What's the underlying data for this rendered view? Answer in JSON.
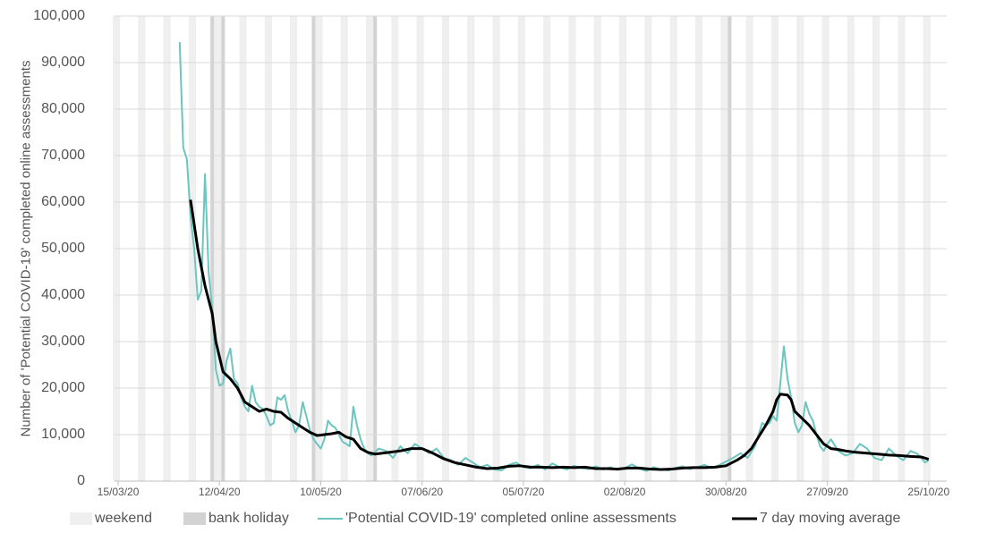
{
  "chart_data": {
    "type": "line",
    "y_label": "Number of 'Potential COVID-19' completed online assessments",
    "weekend_label": "weekend",
    "bank_holiday_label": "bank holiday",
    "weekend_color": "#efefef",
    "bank_holiday_color": "#d3d3d3",
    "bank_holidays": [
      "10/04/20",
      "13/04/20",
      "08/05/20",
      "25/05/20",
      "31/08/20"
    ],
    "grid": true,
    "legend": "bottom",
    "xlim": [
      "14/03/20",
      "30/10/20"
    ],
    "xticks": [
      "15/03/20",
      "12/04/20",
      "10/05/20",
      "07/06/20",
      "05/07/20",
      "02/08/20",
      "30/08/20",
      "27/09/20",
      "25/10/20"
    ],
    "ylim": [
      0,
      100000
    ],
    "yticks": [
      {
        "value": 0,
        "label": "0"
      },
      {
        "value": 10000,
        "label": "10,000"
      },
      {
        "value": 20000,
        "label": "20,000"
      },
      {
        "value": 30000,
        "label": "30,000"
      },
      {
        "value": 40000,
        "label": "40,000"
      },
      {
        "value": 50000,
        "label": "50,000"
      },
      {
        "value": 60000,
        "label": "60,000"
      },
      {
        "value": 70000,
        "label": "70,000"
      },
      {
        "value": 80000,
        "label": "80,000"
      },
      {
        "value": 90000,
        "label": "90,000"
      },
      {
        "value": 100000,
        "label": "100,000"
      }
    ],
    "series": [
      {
        "name": "'Potential COVID-19' completed online assessments",
        "color": "#6cc5bf",
        "width": 2,
        "x": [
          "01/04/20",
          "02/04/20",
          "03/04/20",
          "04/04/20",
          "05/04/20",
          "06/04/20",
          "07/04/20",
          "08/04/20",
          "09/04/20",
          "10/04/20",
          "11/04/20",
          "12/04/20",
          "13/04/20",
          "14/04/20",
          "15/04/20",
          "16/04/20",
          "17/04/20",
          "18/04/20",
          "19/04/20",
          "20/04/20",
          "21/04/20",
          "22/04/20",
          "23/04/20",
          "24/04/20",
          "25/04/20",
          "26/04/20",
          "27/04/20",
          "28/04/20",
          "29/04/20",
          "30/04/20",
          "01/05/20",
          "02/05/20",
          "03/05/20",
          "04/05/20",
          "05/05/20",
          "06/05/20",
          "07/05/20",
          "08/05/20",
          "09/05/20",
          "10/05/20",
          "11/05/20",
          "12/05/20",
          "13/05/20",
          "14/05/20",
          "15/05/20",
          "16/05/20",
          "17/05/20",
          "18/05/20",
          "19/05/20",
          "20/05/20",
          "21/05/20",
          "22/05/20",
          "23/05/20",
          "24/05/20",
          "26/05/20",
          "28/05/20",
          "30/05/20",
          "01/06/20",
          "03/06/20",
          "05/06/20",
          "07/06/20",
          "09/06/20",
          "11/06/20",
          "13/06/20",
          "15/06/20",
          "17/06/20",
          "19/06/20",
          "21/06/20",
          "23/06/20",
          "25/06/20",
          "27/06/20",
          "29/06/20",
          "01/07/20",
          "03/07/20",
          "05/07/20",
          "07/07/20",
          "09/07/20",
          "11/07/20",
          "13/07/20",
          "15/07/20",
          "17/07/20",
          "19/07/20",
          "21/07/20",
          "23/07/20",
          "25/07/20",
          "27/07/20",
          "29/07/20",
          "31/07/20",
          "02/08/20",
          "04/08/20",
          "06/08/20",
          "08/08/20",
          "10/08/20",
          "12/08/20",
          "14/08/20",
          "16/08/20",
          "18/08/20",
          "20/08/20",
          "22/08/20",
          "24/08/20",
          "26/08/20",
          "28/08/20",
          "30/08/20",
          "01/09/20",
          "03/09/20",
          "05/09/20",
          "07/09/20",
          "08/09/20",
          "09/09/20",
          "10/09/20",
          "11/09/20",
          "12/09/20",
          "13/09/20",
          "14/09/20",
          "15/09/20",
          "16/09/20",
          "17/09/20",
          "18/09/20",
          "19/09/20",
          "20/09/20",
          "21/09/20",
          "22/09/20",
          "23/09/20",
          "24/09/20",
          "25/09/20",
          "26/09/20",
          "27/09/20",
          "28/09/20",
          "30/09/20",
          "02/10/20",
          "04/10/20",
          "06/10/20",
          "08/10/20",
          "10/10/20",
          "12/10/20",
          "14/10/20",
          "16/10/20",
          "18/10/20",
          "20/10/20",
          "22/10/20",
          "24/10/20",
          "25/10/20"
        ],
        "values": [
          94400,
          71700,
          69200,
          57000,
          50000,
          39000,
          41000,
          66000,
          45000,
          37000,
          24000,
          20500,
          21000,
          26000,
          28500,
          22000,
          21000,
          18000,
          16000,
          15000,
          20500,
          17000,
          16000,
          15500,
          14000,
          12000,
          12500,
          18000,
          17500,
          18500,
          15000,
          13000,
          10500,
          12000,
          17000,
          14000,
          11000,
          9000,
          8000,
          7000,
          9000,
          13000,
          12000,
          11500,
          10000,
          8500,
          8000,
          7500,
          16000,
          12000,
          9000,
          7000,
          6000,
          5500,
          7000,
          6500,
          5000,
          7500,
          6000,
          8000,
          7000,
          6000,
          7000,
          5000,
          4500,
          3500,
          5000,
          4000,
          3000,
          3500,
          2500,
          2300,
          3500,
          4000,
          3000,
          2800,
          3500,
          2500,
          3800,
          3000,
          2500,
          3300,
          2800,
          2600,
          3200,
          2500,
          3000,
          2400,
          2800,
          3600,
          2700,
          2200,
          3000,
          2500,
          2300,
          2800,
          3200,
          2600,
          3000,
          3500,
          2800,
          3400,
          4200,
          5000,
          6000,
          5000,
          7500,
          10000,
          12500,
          12000,
          12500,
          14000,
          13000,
          21000,
          29000,
          22000,
          18000,
          12500,
          10500,
          12000,
          17000,
          14500,
          13000,
          10000,
          7500,
          6500,
          8000,
          9000,
          6500,
          5500,
          6000,
          8000,
          7000,
          5000,
          4500,
          7000,
          5500,
          4500,
          6500,
          5800,
          4000,
          4500
        ]
      },
      {
        "name": "7 day moving average",
        "color": "#000000",
        "width": 3,
        "x": [
          "04/04/20",
          "06/04/20",
          "08/04/20",
          "10/04/20",
          "11/04/20",
          "13/04/20",
          "15/04/20",
          "17/04/20",
          "19/04/20",
          "21/04/20",
          "23/04/20",
          "25/04/20",
          "27/04/20",
          "29/04/20",
          "01/05/20",
          "03/05/20",
          "05/05/20",
          "07/05/20",
          "09/05/20",
          "11/05/20",
          "13/05/20",
          "15/05/20",
          "17/05/20",
          "19/05/20",
          "21/05/20",
          "23/05/20",
          "25/05/20",
          "27/05/20",
          "29/05/20",
          "01/06/20",
          "04/06/20",
          "07/06/20",
          "10/06/20",
          "13/06/20",
          "16/06/20",
          "19/06/20",
          "22/06/20",
          "25/06/20",
          "28/06/20",
          "01/07/20",
          "04/07/20",
          "07/07/20",
          "10/07/20",
          "13/07/20",
          "16/07/20",
          "19/07/20",
          "22/07/20",
          "25/07/20",
          "28/07/20",
          "31/07/20",
          "03/08/20",
          "06/08/20",
          "09/08/20",
          "12/08/20",
          "15/08/20",
          "18/08/20",
          "21/08/20",
          "24/08/20",
          "27/08/20",
          "30/08/20",
          "02/09/20",
          "04/09/20",
          "06/09/20",
          "08/09/20",
          "10/09/20",
          "12/09/20",
          "13/09/20",
          "14/09/20",
          "16/09/20",
          "17/09/20",
          "18/09/20",
          "20/09/20",
          "22/09/20",
          "24/09/20",
          "26/09/20",
          "28/09/20",
          "30/09/20",
          "02/10/20",
          "05/10/20",
          "08/10/20",
          "11/10/20",
          "14/10/20",
          "17/10/20",
          "20/10/20",
          "23/10/20",
          "25/10/20"
        ],
        "values": [
          60500,
          50000,
          42000,
          36000,
          30000,
          23500,
          22000,
          20000,
          17000,
          16000,
          15000,
          15500,
          15000,
          14800,
          13500,
          12500,
          11500,
          10500,
          9800,
          10000,
          10200,
          10500,
          9500,
          9000,
          7000,
          6200,
          5800,
          6000,
          6200,
          6500,
          7000,
          7000,
          6000,
          4800,
          4000,
          3500,
          3000,
          2700,
          2800,
          3200,
          3300,
          3000,
          3000,
          2900,
          3000,
          2900,
          3000,
          2700,
          2700,
          2600,
          2800,
          2800,
          2600,
          2500,
          2600,
          2800,
          2900,
          2900,
          3000,
          3300,
          4500,
          5500,
          7000,
          9500,
          12000,
          15000,
          17500,
          18700,
          18500,
          17500,
          15000,
          13500,
          12000,
          10000,
          8000,
          7000,
          6800,
          6500,
          6200,
          6000,
          5800,
          5600,
          5500,
          5300,
          5200,
          4700
        ]
      }
    ]
  }
}
